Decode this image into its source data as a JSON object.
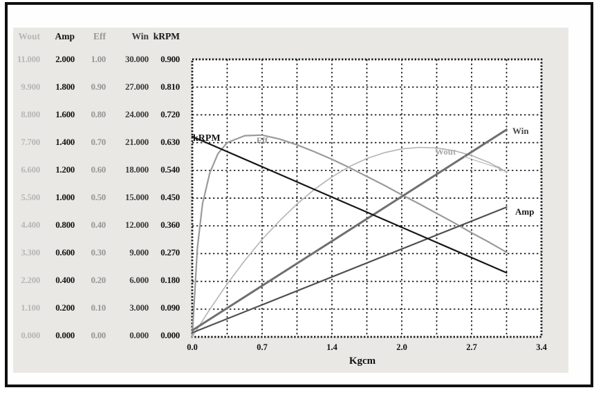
{
  "panel": {
    "bg": "#e9e8e4",
    "frame_color": "#101010",
    "plot_bg": "#ffffff"
  },
  "scale_table": {
    "columns": [
      {
        "header": "Wout",
        "color": "#b7b7b7",
        "values": [
          "11.000",
          "9.900",
          "8.800",
          "7.700",
          "6.600",
          "5.500",
          "4.400",
          "3.300",
          "2.200",
          "1.100",
          "0.000"
        ]
      },
      {
        "header": "Amp",
        "color": "#151515",
        "values": [
          "2.000",
          "1.800",
          "1.600",
          "1.400",
          "1.200",
          "1.000",
          "0.800",
          "0.600",
          "0.400",
          "0.200",
          "0.000"
        ]
      },
      {
        "header": "Eff",
        "color": "#969696",
        "values": [
          "1.00",
          "0.90",
          "0.80",
          "0.70",
          "0.60",
          "0.50",
          "0.40",
          "0.30",
          "0.20",
          "0.10",
          "0.00"
        ]
      },
      {
        "header": "Win",
        "color": "#3a3a3a",
        "values": [
          "30.000",
          "27.000",
          "24.000",
          "21.000",
          "18.000",
          "15.000",
          "12.000",
          "9.000",
          "6.000",
          "3.000",
          "0.000"
        ]
      },
      {
        "header": "kRPM",
        "color": "#151515",
        "values": [
          "0.900",
          "0.810",
          "0.720",
          "0.630",
          "0.540",
          "0.450",
          "0.360",
          "0.270",
          "0.180",
          "0.090",
          "0.000"
        ]
      }
    ]
  },
  "chart_data": {
    "type": "line",
    "title": "",
    "xlabel": "Kgcm",
    "x_range": [
      0,
      3.4
    ],
    "x_tick_labels": [
      "0.0",
      "0.7",
      "1.4",
      "2.0",
      "2.7",
      "3.4"
    ],
    "grid": {
      "cols": 10,
      "rows": 10,
      "style": "dotted",
      "color": "#1a1a1a"
    },
    "series": [
      {
        "name": "eff",
        "label": "Eff",
        "axis_max": 1.0,
        "color": "#9a9a9a",
        "width": 2.2,
        "points": [
          [
            0,
            0
          ],
          [
            0.05,
            0.32
          ],
          [
            0.1,
            0.48
          ],
          [
            0.17,
            0.59
          ],
          [
            0.25,
            0.66
          ],
          [
            0.34,
            0.7
          ],
          [
            0.51,
            0.725
          ],
          [
            0.68,
            0.727
          ],
          [
            0.85,
            0.713
          ],
          [
            1.02,
            0.692
          ],
          [
            1.19,
            0.667
          ],
          [
            1.36,
            0.64
          ],
          [
            1.53,
            0.61
          ],
          [
            1.7,
            0.578
          ],
          [
            1.87,
            0.546
          ],
          [
            2.04,
            0.512
          ],
          [
            2.21,
            0.479
          ],
          [
            2.38,
            0.445
          ],
          [
            2.55,
            0.411
          ],
          [
            2.72,
            0.375
          ],
          [
            2.89,
            0.341
          ],
          [
            3.06,
            0.305
          ]
        ]
      },
      {
        "name": "wout",
        "label": "Wout",
        "axis_max": 11,
        "color": "#b3b3b3",
        "width": 1.6,
        "points": [
          [
            0,
            0
          ],
          [
            0.17,
            1.09
          ],
          [
            0.34,
            2.1
          ],
          [
            0.51,
            3.02
          ],
          [
            0.68,
            3.86
          ],
          [
            0.85,
            4.6
          ],
          [
            1.02,
            5.27
          ],
          [
            1.19,
            5.85
          ],
          [
            1.36,
            6.34
          ],
          [
            1.53,
            6.75
          ],
          [
            1.7,
            7.07
          ],
          [
            1.87,
            7.3
          ],
          [
            2.04,
            7.45
          ],
          [
            2.21,
            7.51
          ],
          [
            2.38,
            7.49
          ],
          [
            2.55,
            7.38
          ],
          [
            2.72,
            7.19
          ],
          [
            2.89,
            6.91
          ],
          [
            3.06,
            6.54
          ]
        ]
      },
      {
        "name": "win",
        "label": "Win",
        "axis_max": 30,
        "color": "#6f6f6f",
        "width": 3,
        "points": [
          [
            0,
            0.7
          ],
          [
            3.06,
            22.4
          ]
        ]
      },
      {
        "name": "amp",
        "label": "Amp",
        "axis_max": 2,
        "color": "#4f4f4f",
        "width": 2.2,
        "points": [
          [
            0,
            0.03
          ],
          [
            3.06,
            0.935
          ]
        ]
      },
      {
        "name": "krpm",
        "label": "kRPM",
        "axis_max": 0.9,
        "color": "#161616",
        "width": 2.2,
        "points": [
          [
            0,
            0.65
          ],
          [
            3.06,
            0.208
          ]
        ]
      }
    ]
  }
}
